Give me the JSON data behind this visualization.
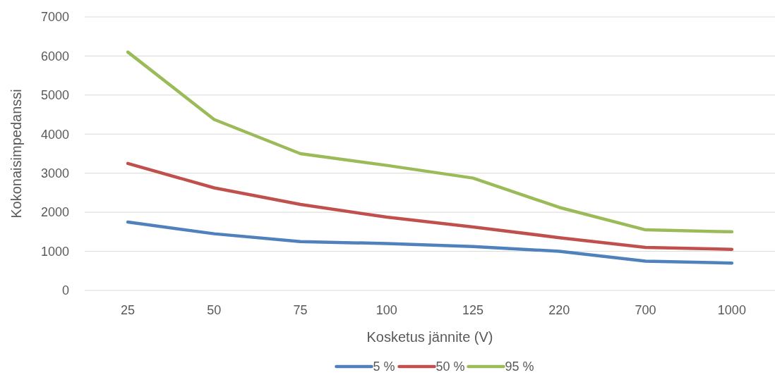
{
  "chart_data": {
    "type": "line",
    "xlabel": "Kosketus jännite (V)",
    "ylabel": "Kokonaisimpedanssi",
    "categories": [
      "25",
      "50",
      "75",
      "100",
      "125",
      "220",
      "700",
      "1000"
    ],
    "series": [
      {
        "name": "5 %",
        "color": "#4f81bd",
        "values": [
          1750,
          1450,
          1250,
          1200,
          1125,
          1000,
          750,
          700
        ]
      },
      {
        "name": "50 %",
        "color": "#c0504d",
        "values": [
          3250,
          2625,
          2200,
          1875,
          1625,
          1350,
          1100,
          1050
        ]
      },
      {
        "name": "95 %",
        "color": "#9bbb59",
        "values": [
          6100,
          4375,
          3500,
          3200,
          2875,
          2125,
          1550,
          1500
        ]
      }
    ],
    "ylim": [
      0,
      7000
    ],
    "yticks": [
      0,
      1000,
      2000,
      3000,
      4000,
      5000,
      6000,
      7000
    ],
    "grid": "y",
    "legend": "bottom",
    "marker": "none",
    "line_style": "solid"
  }
}
